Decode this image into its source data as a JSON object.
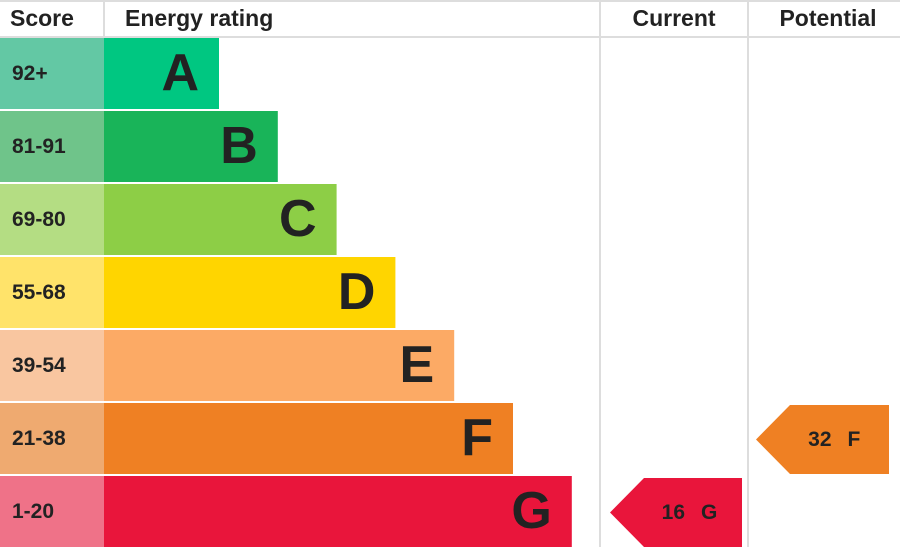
{
  "header": {
    "score": "Score",
    "rating": "Energy rating",
    "current": "Current",
    "potential": "Potential"
  },
  "bands": [
    {
      "range": "92+",
      "letter": "A",
      "color": "#00c781",
      "score_color": "#63c8a4"
    },
    {
      "range": "81-91",
      "letter": "B",
      "color": "#19b459",
      "score_color": "#6fc48a"
    },
    {
      "range": "69-80",
      "letter": "C",
      "color": "#8dce46",
      "score_color": "#b4dd83"
    },
    {
      "range": "55-68",
      "letter": "D",
      "color": "#ffd500",
      "score_color": "#ffe36a"
    },
    {
      "range": "39-54",
      "letter": "E",
      "color": "#fcaa65",
      "score_color": "#f9c6a0"
    },
    {
      "range": "21-38",
      "letter": "F",
      "color": "#ef8023",
      "score_color": "#efaa70"
    },
    {
      "range": "1-20",
      "letter": "G",
      "color": "#e9153b",
      "score_color": "#ef7288"
    }
  ],
  "current": {
    "value": 16,
    "rating": "G"
  },
  "potential": {
    "value": 32,
    "rating": "F"
  }
}
